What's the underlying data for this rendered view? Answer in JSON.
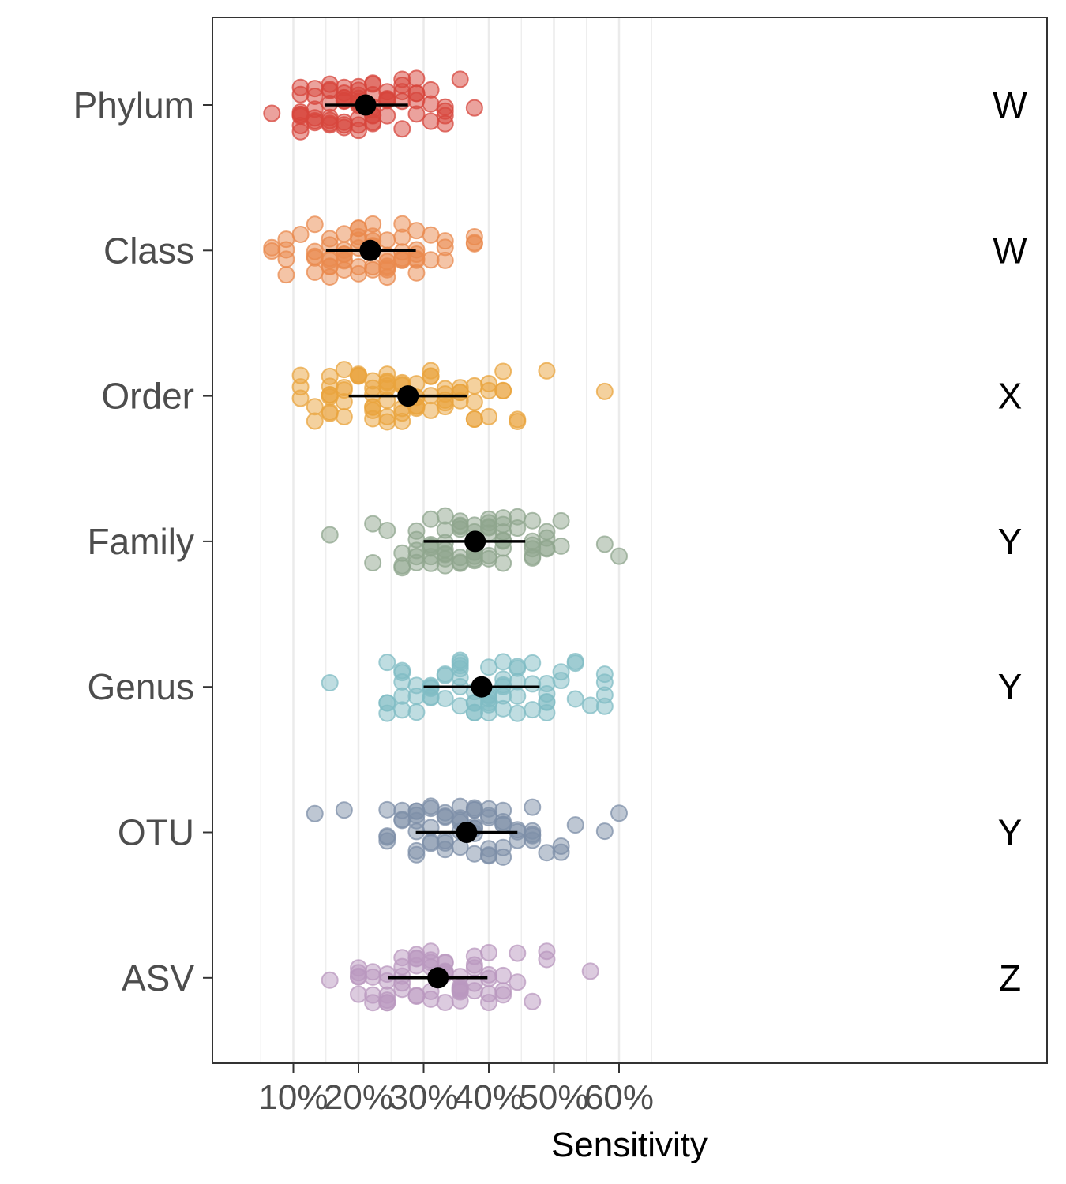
{
  "chart_data": {
    "type": "scatter",
    "orientation": "horizontal",
    "xlabel": "Sensitivity",
    "ylabel": "",
    "xlim": [
      5,
      65
    ],
    "x_ticks": [
      10,
      20,
      30,
      40,
      50,
      60
    ],
    "x_tick_labels": [
      "10%",
      "20%",
      "30%",
      "40%",
      "50%",
      "60%"
    ],
    "grid": "vertical",
    "categories": [
      "Phylum",
      "Class",
      "Order",
      "Family",
      "Genus",
      "OTU",
      "ASV"
    ],
    "series": [
      {
        "category": "Phylum",
        "color": "#d7463c",
        "group_letter": "W",
        "mean": 21.1,
        "ci": [
          14.8,
          27.6
        ],
        "points": [
          6.7,
          11.1,
          11.1,
          11.1,
          11.1,
          11.1,
          11.1,
          11.1,
          11.1,
          13.3,
          13.3,
          13.3,
          13.3,
          13.3,
          13.3,
          15.6,
          15.6,
          15.6,
          15.6,
          15.6,
          15.6,
          15.6,
          15.6,
          17.8,
          17.8,
          17.8,
          17.8,
          17.8,
          17.8,
          17.8,
          17.8,
          17.8,
          20.0,
          20.0,
          20.0,
          20.0,
          20.0,
          20.0,
          20.0,
          20.0,
          20.0,
          20.0,
          22.2,
          22.2,
          22.2,
          22.2,
          22.2,
          22.2,
          22.2,
          22.2,
          22.2,
          24.4,
          24.4,
          24.4,
          24.4,
          24.4,
          24.4,
          26.7,
          26.7,
          26.7,
          26.7,
          26.7,
          28.9,
          28.9,
          28.9,
          28.9,
          28.9,
          31.1,
          31.1,
          31.1,
          33.3,
          33.3,
          33.3,
          33.3,
          35.6,
          37.8
        ]
      },
      {
        "category": "Class",
        "color": "#ea8a4e",
        "group_letter": "W",
        "mean": 21.8,
        "ci": [
          15.0,
          28.8
        ],
        "points": [
          6.7,
          6.7,
          8.9,
          8.9,
          8.9,
          8.9,
          11.1,
          13.3,
          13.3,
          13.3,
          13.3,
          13.3,
          15.6,
          15.6,
          15.6,
          15.6,
          15.6,
          15.6,
          15.6,
          17.8,
          17.8,
          17.8,
          17.8,
          17.8,
          17.8,
          17.8,
          20.0,
          20.0,
          20.0,
          20.0,
          20.0,
          20.0,
          20.0,
          22.2,
          22.2,
          22.2,
          22.2,
          22.2,
          22.2,
          22.2,
          24.4,
          24.4,
          24.4,
          24.4,
          24.4,
          24.4,
          24.4,
          26.7,
          26.7,
          26.7,
          26.7,
          26.7,
          26.7,
          28.9,
          28.9,
          28.9,
          28.9,
          28.9,
          28.9,
          31.1,
          31.1,
          33.3,
          33.3,
          33.3,
          37.8,
          37.8,
          37.8
        ]
      },
      {
        "category": "Order",
        "color": "#e9a43e",
        "group_letter": "X",
        "mean": 27.6,
        "ci": [
          18.5,
          36.7
        ],
        "points": [
          11.1,
          11.1,
          11.1,
          13.3,
          13.3,
          15.6,
          15.6,
          15.6,
          15.6,
          15.6,
          15.6,
          15.6,
          17.8,
          17.8,
          17.8,
          17.8,
          17.8,
          20.0,
          20.0,
          20.0,
          20.0,
          22.2,
          22.2,
          22.2,
          22.2,
          22.2,
          22.2,
          22.2,
          24.4,
          24.4,
          24.4,
          24.4,
          24.4,
          24.4,
          24.4,
          24.4,
          26.7,
          26.7,
          26.7,
          26.7,
          26.7,
          26.7,
          28.9,
          28.9,
          28.9,
          28.9,
          28.9,
          28.9,
          31.1,
          31.1,
          31.1,
          31.1,
          31.1,
          33.3,
          33.3,
          33.3,
          33.3,
          33.3,
          35.6,
          35.6,
          35.6,
          35.6,
          37.8,
          37.8,
          37.8,
          37.8,
          40.0,
          40.0,
          40.0,
          42.2,
          42.2,
          42.2,
          44.4,
          44.4,
          48.9,
          57.8
        ]
      },
      {
        "category": "Family",
        "color": "#8fa58e",
        "group_letter": "Y",
        "mean": 37.9,
        "ci": [
          30.0,
          45.6
        ],
        "points": [
          15.6,
          22.2,
          22.2,
          24.4,
          26.7,
          26.7,
          26.7,
          28.9,
          28.9,
          28.9,
          28.9,
          28.9,
          31.1,
          31.1,
          31.1,
          31.1,
          31.1,
          31.1,
          33.3,
          33.3,
          33.3,
          33.3,
          33.3,
          33.3,
          33.3,
          33.3,
          35.6,
          35.6,
          35.6,
          35.6,
          35.6,
          35.6,
          35.6,
          37.8,
          37.8,
          37.8,
          37.8,
          37.8,
          37.8,
          37.8,
          40.0,
          40.0,
          40.0,
          40.0,
          40.0,
          40.0,
          40.0,
          42.2,
          42.2,
          42.2,
          42.2,
          42.2,
          42.2,
          42.2,
          44.4,
          44.4,
          46.7,
          46.7,
          46.7,
          46.7,
          46.7,
          46.7,
          48.9,
          48.9,
          48.9,
          48.9,
          51.1,
          51.1,
          57.8,
          60.0
        ]
      },
      {
        "category": "Genus",
        "color": "#80bcc4",
        "group_letter": "Y",
        "mean": 38.9,
        "ci": [
          30.0,
          47.8
        ],
        "points": [
          15.6,
          24.4,
          24.4,
          24.4,
          24.4,
          26.7,
          26.7,
          26.7,
          26.7,
          26.7,
          28.9,
          28.9,
          28.9,
          31.1,
          31.1,
          31.1,
          31.1,
          31.1,
          33.3,
          33.3,
          33.3,
          35.6,
          35.6,
          35.6,
          35.6,
          35.6,
          35.6,
          35.6,
          37.8,
          37.8,
          37.8,
          37.8,
          37.8,
          40.0,
          40.0,
          40.0,
          40.0,
          40.0,
          40.0,
          40.0,
          42.2,
          42.2,
          42.2,
          42.2,
          42.2,
          42.2,
          44.4,
          44.4,
          44.4,
          44.4,
          44.4,
          46.7,
          46.7,
          46.7,
          48.9,
          48.9,
          48.9,
          48.9,
          48.9,
          51.1,
          51.1,
          53.3,
          53.3,
          53.3,
          55.6,
          57.8,
          57.8,
          57.8,
          57.8
        ]
      },
      {
        "category": "OTU",
        "color": "#7e8fa8",
        "group_letter": "Y",
        "mean": 36.6,
        "ci": [
          28.8,
          44.4
        ],
        "points": [
          13.3,
          17.8,
          24.4,
          24.4,
          24.4,
          24.4,
          26.7,
          26.7,
          26.7,
          28.9,
          28.9,
          28.9,
          28.9,
          28.9,
          28.9,
          28.9,
          31.1,
          31.1,
          31.1,
          31.1,
          31.1,
          33.3,
          33.3,
          33.3,
          33.3,
          33.3,
          33.3,
          35.6,
          35.6,
          35.6,
          35.6,
          35.6,
          35.6,
          37.8,
          37.8,
          37.8,
          37.8,
          37.8,
          37.8,
          37.8,
          37.8,
          40.0,
          40.0,
          40.0,
          40.0,
          40.0,
          40.0,
          42.2,
          42.2,
          42.2,
          42.2,
          42.2,
          42.2,
          44.4,
          44.4,
          44.4,
          46.7,
          46.7,
          46.7,
          46.7,
          46.7,
          48.9,
          51.1,
          51.1,
          53.3,
          57.8,
          60.0
        ]
      },
      {
        "category": "ASV",
        "color": "#b998bf",
        "group_letter": "Z",
        "mean": 32.2,
        "ci": [
          24.5,
          39.8
        ],
        "points": [
          15.6,
          20.0,
          20.0,
          20.0,
          20.0,
          20.0,
          22.2,
          22.2,
          22.2,
          22.2,
          24.4,
          24.4,
          24.4,
          24.4,
          24.4,
          24.4,
          26.7,
          26.7,
          26.7,
          26.7,
          26.7,
          28.9,
          28.9,
          28.9,
          28.9,
          28.9,
          28.9,
          31.1,
          31.1,
          31.1,
          31.1,
          31.1,
          31.1,
          33.3,
          33.3,
          33.3,
          33.3,
          33.3,
          33.3,
          35.6,
          35.6,
          35.6,
          35.6,
          35.6,
          35.6,
          35.6,
          37.8,
          37.8,
          37.8,
          37.8,
          37.8,
          40.0,
          40.0,
          40.0,
          40.0,
          40.0,
          42.2,
          42.2,
          42.2,
          44.4,
          44.4,
          46.7,
          48.9,
          48.9,
          55.6
        ]
      }
    ]
  }
}
